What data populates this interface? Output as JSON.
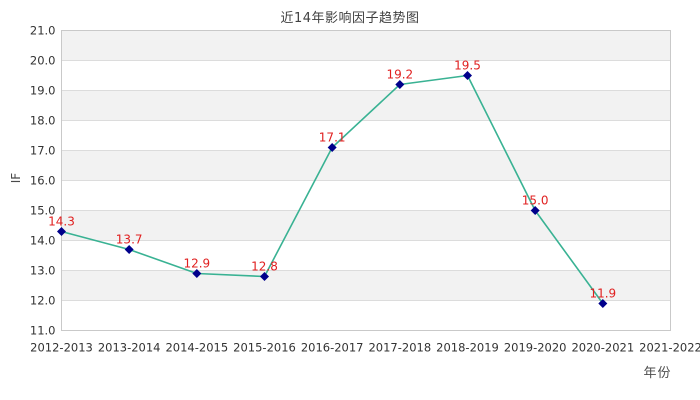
{
  "chart_data": {
    "type": "line",
    "title": "近14年影响因子趋势图",
    "xlabel": "年份",
    "ylabel": "IF",
    "categories": [
      "2012-2013",
      "2013-2014",
      "2014-2015",
      "2015-2016",
      "2016-2017",
      "2017-2018",
      "2018-2019",
      "2019-2020",
      "2020-2021",
      "2021-2022"
    ],
    "values": [
      14.3,
      13.7,
      12.9,
      12.8,
      17.1,
      19.2,
      19.5,
      15.0,
      11.9,
      null
    ],
    "value_labels": [
      "14.3",
      "13.7",
      "12.9",
      "12.8",
      "17.1",
      "19.2",
      "19.5",
      "15.0",
      "11.9"
    ],
    "ylim": [
      11.0,
      21.0
    ],
    "ytick_step": 1.0,
    "ytick_labels": [
      "21.0",
      "20.0",
      "19.0",
      "18.0",
      "17.0",
      "16.0",
      "15.0",
      "14.0",
      "13.0",
      "12.0",
      "11.0"
    ],
    "grid": "horizontal-bands-alternating",
    "legend": "none",
    "colors": {
      "line": "#39b293",
      "marker": "#00008b",
      "value_label": "#e02020",
      "band": "#f2f2f2",
      "band_alt": "#ffffff",
      "gridline": "#dcdcdc",
      "frame": "#c9c9c9",
      "tick_text": "#333333",
      "title_text": "#404040"
    }
  }
}
